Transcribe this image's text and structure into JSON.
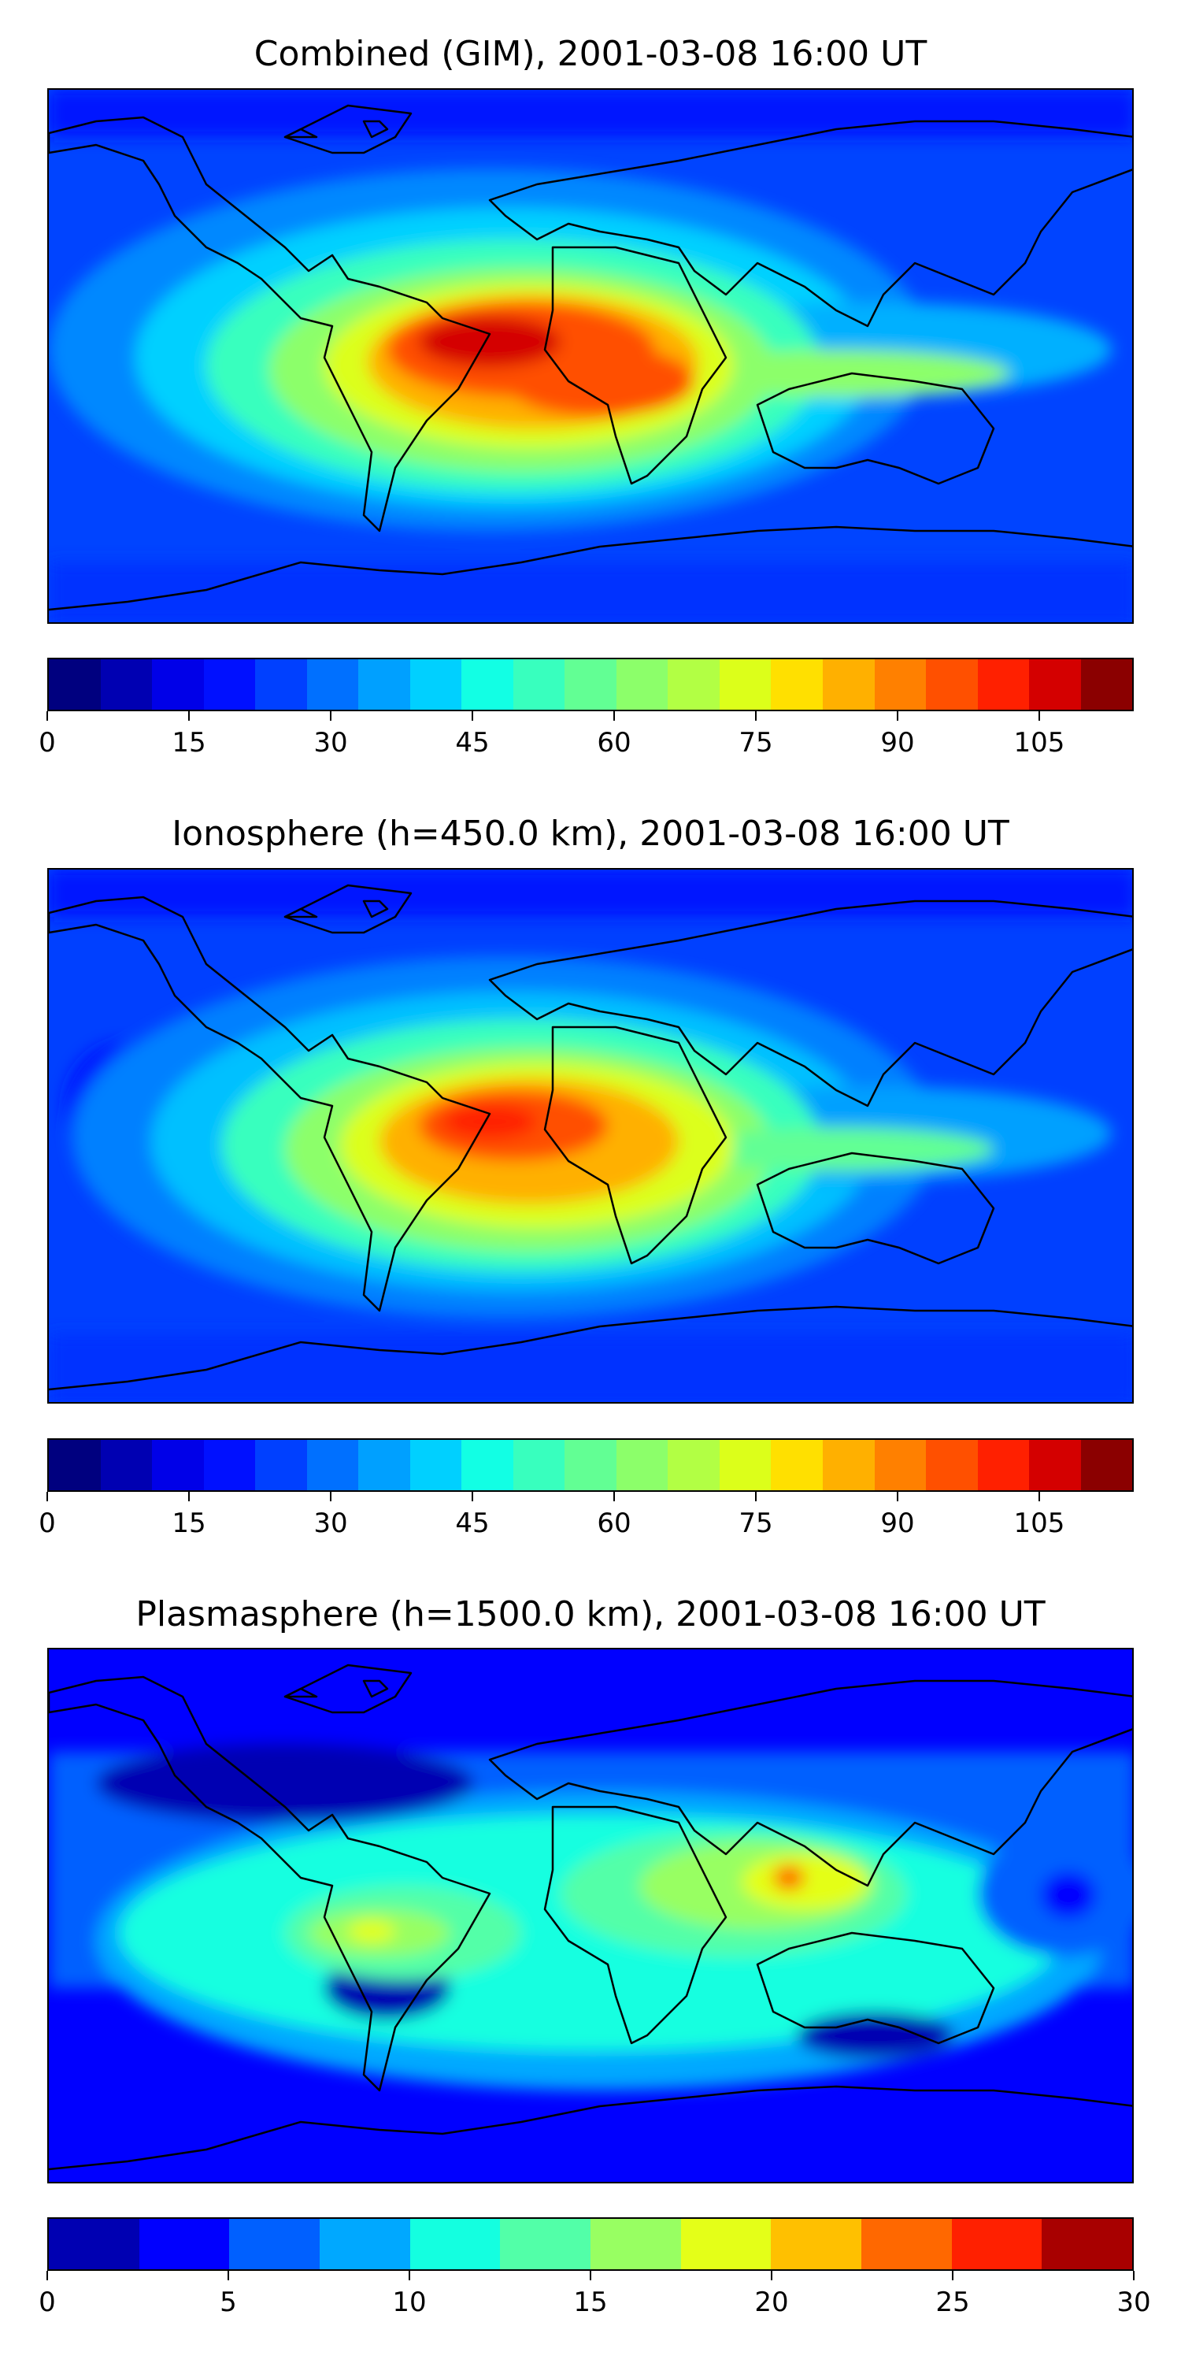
{
  "panels": [
    {
      "title": "Combined (GIM), 2001-03-08 16:00 UT",
      "colorbar": {
        "vmin": 0,
        "vmax": 115,
        "tick_labels": [
          "0",
          "15",
          "30",
          "45",
          "60",
          "75",
          "90",
          "105"
        ],
        "colors": [
          "#00007f",
          "#0000b2",
          "#0000e8",
          "#0010ff",
          "#0040ff",
          "#0070ff",
          "#00a0ff",
          "#00d0ff",
          "#12ffe4",
          "#38ffbe",
          "#62ff94",
          "#8cff6a",
          "#b2ff44",
          "#dcff1a",
          "#ffe000",
          "#ffb000",
          "#ff8000",
          "#ff5000",
          "#ff2000",
          "#d40000",
          "#8b0000"
        ]
      }
    },
    {
      "title": "Ionosphere  (h=450.0 km), 2001-03-08 16:00 UT",
      "colorbar": {
        "vmin": 0,
        "vmax": 115,
        "tick_labels": [
          "0",
          "15",
          "30",
          "45",
          "60",
          "75",
          "90",
          "105"
        ],
        "colors": [
          "#00007f",
          "#0000b2",
          "#0000e8",
          "#0010ff",
          "#0040ff",
          "#0070ff",
          "#00a0ff",
          "#00d0ff",
          "#12ffe4",
          "#38ffbe",
          "#62ff94",
          "#8cff6a",
          "#b2ff44",
          "#dcff1a",
          "#ffe000",
          "#ffb000",
          "#ff8000",
          "#ff5000",
          "#ff2000",
          "#d40000",
          "#8b0000"
        ]
      }
    },
    {
      "title": "Plasmasphere (h=1500.0 km), 2001-03-08 16:00 UT",
      "colorbar": {
        "vmin": 0,
        "vmax": 30,
        "tick_labels": [
          "0",
          "5",
          "10",
          "15",
          "20",
          "25",
          "30"
        ],
        "colors": [
          "#0000b2",
          "#0000ff",
          "#0060ff",
          "#00a8ff",
          "#14ffe0",
          "#52ffa8",
          "#98ff62",
          "#e4ff18",
          "#ffc000",
          "#ff6800",
          "#ff2000",
          "#a80000"
        ]
      }
    }
  ]
}
